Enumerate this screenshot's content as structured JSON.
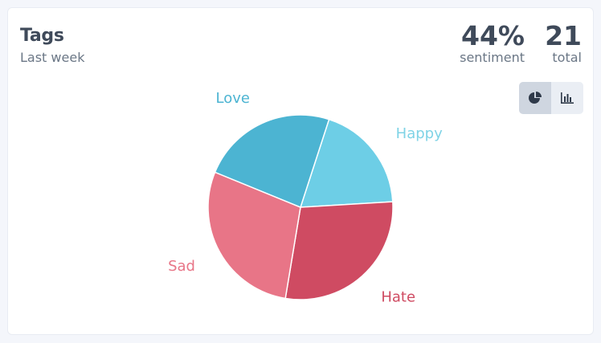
{
  "header": {
    "title": "Tags",
    "subtitle": "Last week"
  },
  "stats": {
    "sentiment_value": "44%",
    "sentiment_label": "sentiment",
    "total_value": "21",
    "total_label": "total"
  },
  "toggle": {
    "pie_icon": "pie-chart-icon",
    "bar_icon": "bar-chart-icon",
    "active": "pie"
  },
  "chart_data": {
    "type": "pie",
    "categories": [
      "Happy",
      "Hate",
      "Sad",
      "Love"
    ],
    "values": [
      4,
      6,
      6,
      5
    ],
    "colors": [
      "#6dcee6",
      "#cf4b62",
      "#e87587",
      "#4cb4d2"
    ],
    "label_colors": [
      "#7fd3e6",
      "#cf4b62",
      "#e87587",
      "#4cb4d2"
    ]
  }
}
